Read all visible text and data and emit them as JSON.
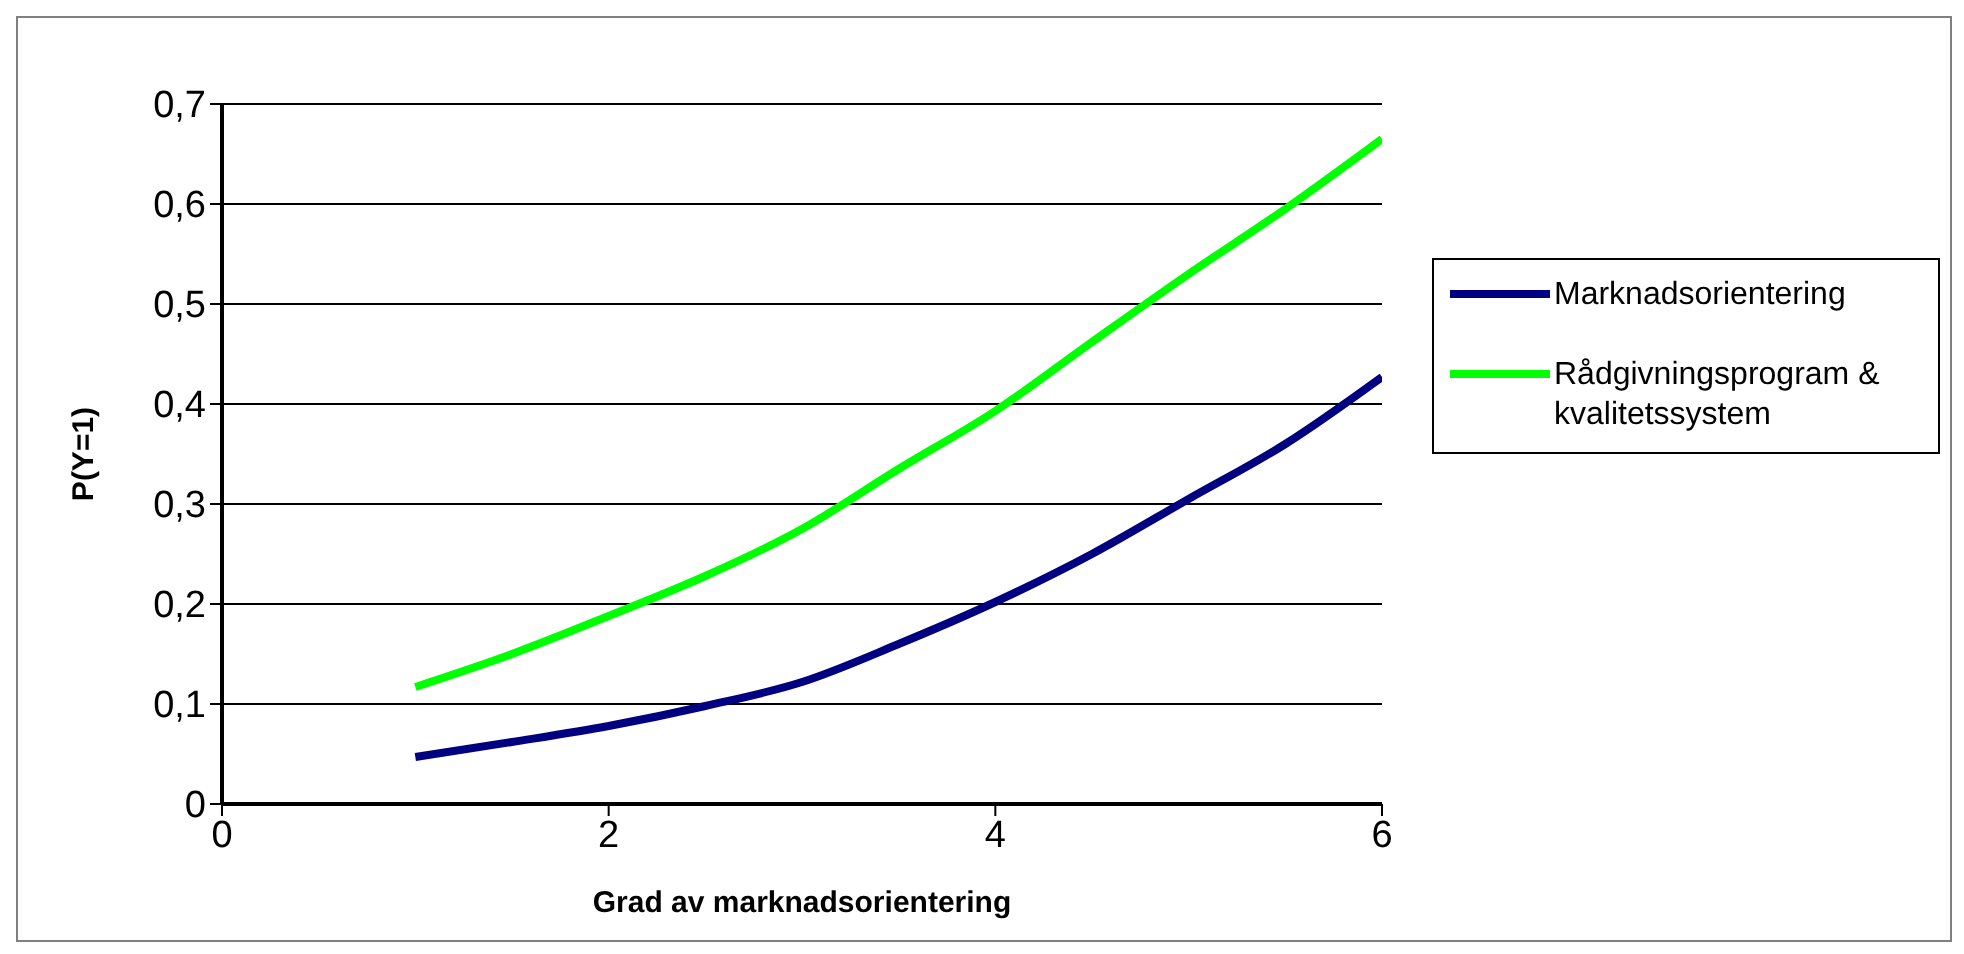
{
  "chart_data": {
    "type": "line",
    "xlabel": "Grad av marknadsorientering",
    "ylabel": "P(Y=1)",
    "x": [
      1,
      1.5,
      2,
      2.5,
      3,
      3.5,
      4,
      4.5,
      5,
      5.5,
      6
    ],
    "series": [
      {
        "name": "Marknadsorientering",
        "color": "#000080",
        "values": [
          0.047,
          0.062,
          0.078,
          0.098,
          0.122,
          0.16,
          0.202,
          0.25,
          0.305,
          0.36,
          0.427
        ]
      },
      {
        "name": "Rådgivningsprogram & kvalitetssystem",
        "color": "#00ff00",
        "values": [
          0.117,
          0.15,
          0.188,
          0.228,
          0.275,
          0.335,
          0.393,
          0.462,
          0.53,
          0.595,
          0.665
        ]
      }
    ],
    "xlim": [
      0,
      6
    ],
    "xticks": [
      0,
      2,
      4,
      6
    ],
    "ylim": [
      0,
      0.7
    ],
    "yticks": [
      0,
      {
        "value": 0.1,
        "label": "0,1"
      },
      {
        "value": 0.2,
        "label": "0,2"
      },
      {
        "value": 0.3,
        "label": "0,3"
      },
      {
        "value": 0.4,
        "label": "0,4"
      },
      {
        "value": 0.5,
        "label": "0,5"
      },
      {
        "value": 0.6,
        "label": "0,6"
      },
      {
        "value": 0.7,
        "label": "0,7"
      }
    ],
    "grid": "y",
    "legend": "right",
    "marker": "none",
    "line_style": "solid"
  }
}
